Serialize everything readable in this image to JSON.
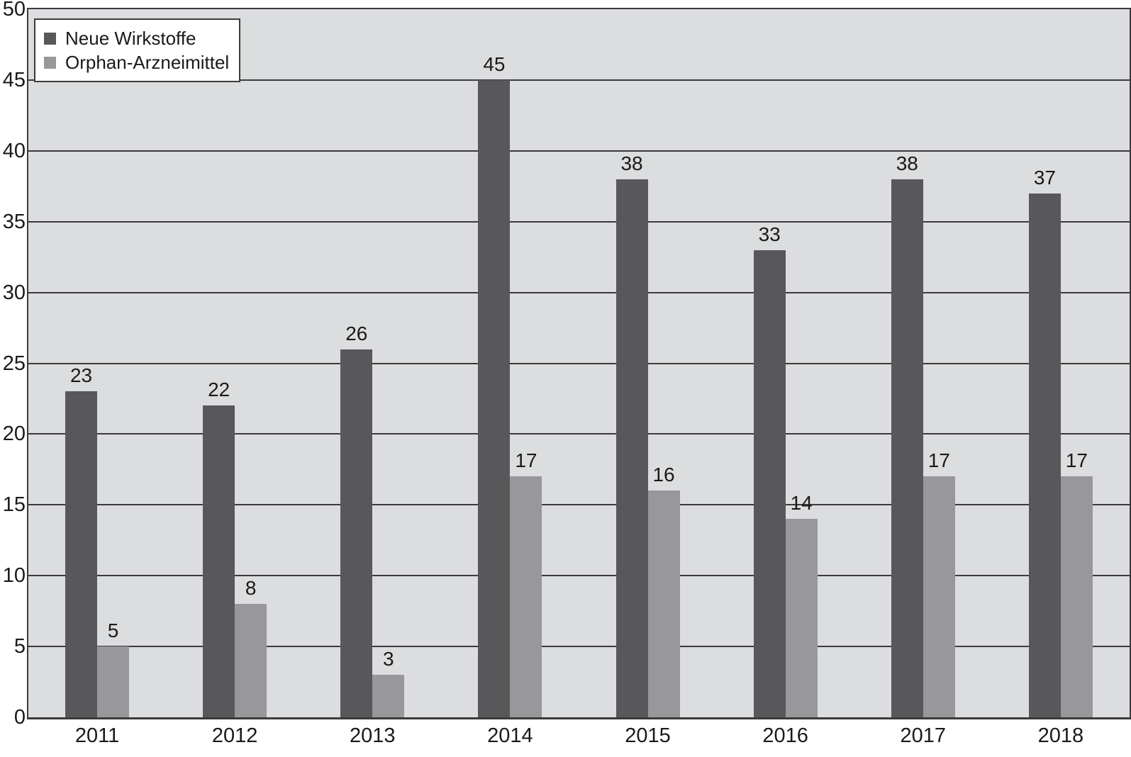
{
  "chart_data": {
    "type": "bar",
    "categories": [
      "2011",
      "2012",
      "2013",
      "2014",
      "2015",
      "2016",
      "2017",
      "2018"
    ],
    "series": [
      {
        "name": "Neue Wirkstoffe",
        "values": [
          23,
          22,
          26,
          45,
          38,
          33,
          38,
          37
        ],
        "color": "#58585a"
      },
      {
        "name": "Orphan-Arzneimittel",
        "values": [
          5,
          8,
          3,
          17,
          16,
          14,
          17,
          17
        ],
        "color": "#98989b"
      }
    ],
    "title": "",
    "xlabel": "",
    "ylabel": "",
    "ylim": [
      0,
      50
    ],
    "ytick_step": 5,
    "grid": "horizontal",
    "legend_position": "top-left",
    "plot_background": "#dcddde",
    "grid_color": "#3b3b3d",
    "label_color": "#1a1a1a"
  }
}
